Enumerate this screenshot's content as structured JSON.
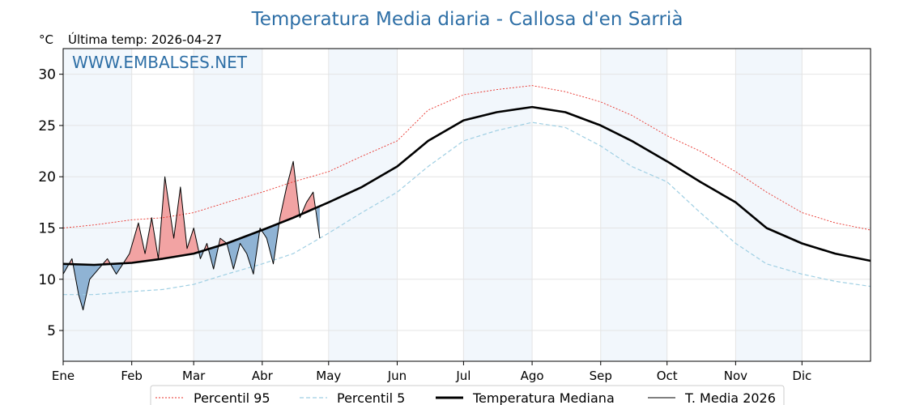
{
  "chart_data": {
    "type": "line",
    "title": "Temperatura Media diaria - Callosa d'en Sarrià",
    "unit_label": "°C",
    "subtitle": "Última temp: 2026-04-27",
    "watermark": "WWW.EMBALSES.NET",
    "ylim": [
      2,
      32.5
    ],
    "yticks": [
      5,
      10,
      15,
      20,
      25,
      30
    ],
    "grid": true,
    "legend_position": "bottom",
    "months": [
      "Ene",
      "Feb",
      "Mar",
      "Abr",
      "May",
      "Jun",
      "Jul",
      "Ago",
      "Sep",
      "Oct",
      "Nov",
      "Dic"
    ],
    "month_start_days": [
      1,
      32,
      60,
      91,
      121,
      152,
      182,
      213,
      244,
      274,
      305,
      335
    ],
    "x_max_day": 366,
    "series": [
      {
        "name": "Percentil 95",
        "color": "#e8312a",
        "style": "dotted",
        "x": [
          1,
          15,
          32,
          46,
          60,
          75,
          91,
          105,
          121,
          136,
          152,
          166,
          182,
          197,
          213,
          228,
          244,
          258,
          274,
          289,
          305,
          319,
          335,
          350,
          366
        ],
        "y": [
          15.0,
          15.3,
          15.8,
          16.0,
          16.5,
          17.5,
          18.5,
          19.5,
          20.5,
          22.0,
          23.5,
          26.5,
          28.0,
          28.5,
          28.9,
          28.3,
          27.3,
          26.0,
          24.0,
          22.5,
          20.5,
          18.5,
          16.5,
          15.5,
          14.8
        ]
      },
      {
        "name": "Percentil 5",
        "color": "#9fcfe3",
        "style": "dashed",
        "x": [
          1,
          15,
          32,
          46,
          60,
          75,
          91,
          105,
          121,
          136,
          152,
          166,
          182,
          197,
          213,
          228,
          244,
          258,
          274,
          289,
          305,
          319,
          335,
          350,
          366
        ],
        "y": [
          8.5,
          8.5,
          8.8,
          9.0,
          9.5,
          10.5,
          11.5,
          12.5,
          14.5,
          16.5,
          18.5,
          21.0,
          23.5,
          24.5,
          25.3,
          24.8,
          23.0,
          21.0,
          19.5,
          16.5,
          13.5,
          11.5,
          10.5,
          9.8,
          9.3
        ]
      },
      {
        "name": "Temperatura Mediana",
        "color": "#000000",
        "style": "solid-thick",
        "x": [
          1,
          15,
          32,
          46,
          60,
          75,
          91,
          105,
          121,
          136,
          152,
          166,
          182,
          197,
          213,
          228,
          244,
          258,
          274,
          289,
          305,
          319,
          335,
          350,
          366
        ],
        "y": [
          11.5,
          11.4,
          11.6,
          12.0,
          12.5,
          13.5,
          14.8,
          16.0,
          17.5,
          19.0,
          21.0,
          23.5,
          25.5,
          26.3,
          26.8,
          26.3,
          25.0,
          23.5,
          21.5,
          19.5,
          17.5,
          15.0,
          13.5,
          12.5,
          11.8
        ]
      },
      {
        "name": "T. Media 2026",
        "color": "#000000",
        "style": "solid-thin",
        "x": [
          1,
          5,
          8,
          10,
          13,
          17,
          21,
          25,
          28,
          31,
          35,
          38,
          41,
          44,
          47,
          49,
          51,
          54,
          57,
          60,
          63,
          66,
          69,
          72,
          75,
          78,
          81,
          84,
          87,
          90,
          93,
          96,
          99,
          102,
          105,
          108,
          111,
          114,
          117
        ],
        "y": [
          10.5,
          12.0,
          8.5,
          7.0,
          10.0,
          11.0,
          12.0,
          10.5,
          11.5,
          12.5,
          15.5,
          12.5,
          16.0,
          12.0,
          20.0,
          17.0,
          14.0,
          19.0,
          13.0,
          15.0,
          12.0,
          13.5,
          11.0,
          14.0,
          13.5,
          11.0,
          13.5,
          12.5,
          10.5,
          15.0,
          14.0,
          11.5,
          16.0,
          19.0,
          21.5,
          16.0,
          17.5,
          18.5,
          14.0
        ]
      }
    ],
    "fill_above_color": "#f2a3a3",
    "fill_below_color": "#8fb3d4"
  }
}
